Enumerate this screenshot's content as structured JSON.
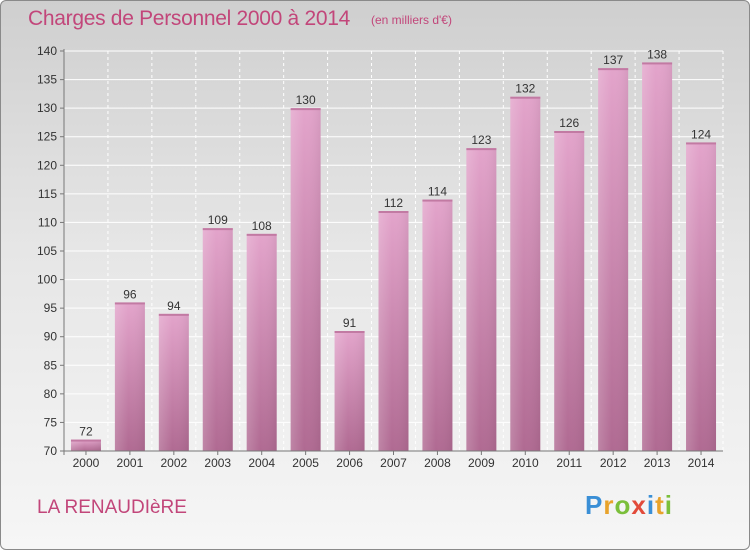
{
  "header": {
    "title": "Charges de Personnel 2000 à 2014",
    "subtitle": "(en milliers d'€)"
  },
  "footer": {
    "commune": "LA RENAUDIèRE",
    "logo_letters": [
      "P",
      "r",
      "o",
      "x",
      "i",
      "t",
      "i"
    ]
  },
  "colors": {
    "title": "#c2467a",
    "bar_top": "#e3a4cb",
    "bar_bottom": "#b06a92",
    "logo": [
      "#3a8fd6",
      "#e8a32b",
      "#7bbf3b",
      "#e24a3a",
      "#3a8fd6",
      "#e8a32b",
      "#7bbf3b"
    ]
  },
  "chart_data": {
    "type": "bar",
    "categories": [
      "2000",
      "2001",
      "2002",
      "2003",
      "2004",
      "2005",
      "2006",
      "2007",
      "2008",
      "2009",
      "2010",
      "2011",
      "2012",
      "2013",
      "2014"
    ],
    "values": [
      72,
      96,
      94,
      109,
      108,
      130,
      91,
      112,
      114,
      123,
      132,
      126,
      137,
      138,
      124
    ],
    "ylim": [
      70,
      140
    ],
    "yticks": [
      70,
      75,
      80,
      85,
      90,
      95,
      100,
      105,
      110,
      115,
      120,
      125,
      130,
      135,
      140
    ],
    "grid": true,
    "data_labels": true
  }
}
